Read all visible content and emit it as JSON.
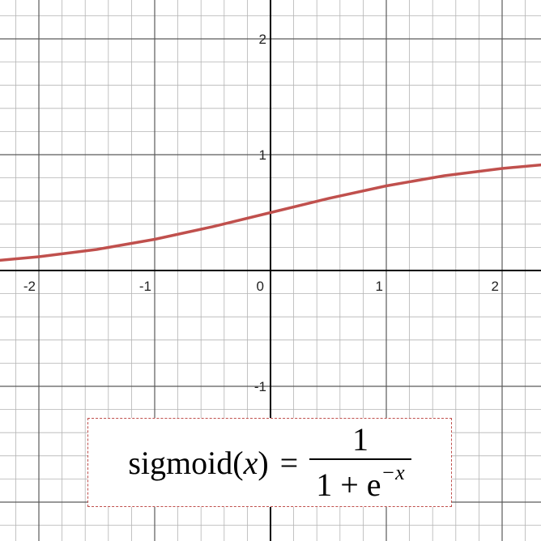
{
  "chart_data": {
    "type": "line",
    "function": "sigmoid",
    "xlim": [
      -2.35,
      2.35
    ],
    "ylim": [
      -2.3,
      2.4
    ],
    "x_ticks": [
      "-2",
      "-1",
      "0",
      "1",
      "2"
    ],
    "y_ticks": [
      "2",
      "1",
      "-1"
    ],
    "grid": true,
    "minor_grid_step": 0.2,
    "series": [
      {
        "color": "#c0504d",
        "x": [
          -2.35,
          -2.0,
          -1.5,
          -1.0,
          -0.5,
          0.0,
          0.5,
          1.0,
          1.5,
          2.0,
          2.35
        ],
        "y": [
          0.087,
          0.119,
          0.182,
          0.269,
          0.378,
          0.5,
          0.622,
          0.731,
          0.818,
          0.881,
          0.913
        ]
      }
    ]
  },
  "formula": {
    "lhs_name": "sigmoid",
    "lhs_open": "(",
    "lhs_var": "x",
    "lhs_close": ")",
    "equals": "=",
    "numerator": "1",
    "denominator_base": "1 + e",
    "denominator_exponent": "−x"
  },
  "colors": {
    "curve": "#c0504d",
    "major_grid": "#5a5a5a",
    "minor_grid": "#b4b4b4",
    "axis": "#000000",
    "formula_border": "#c0504d"
  }
}
